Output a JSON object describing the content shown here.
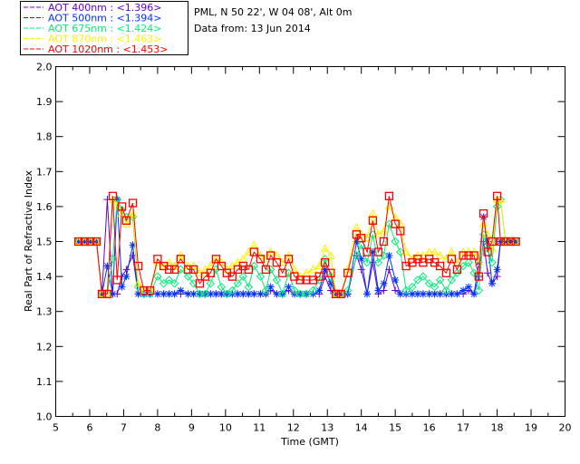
{
  "header": {
    "site": "PML, N 50 22', W 04 08', Alt 0m",
    "date": "Data from: 13 Jun 2014"
  },
  "chart_data": {
    "type": "line",
    "title": "",
    "xlabel": "Time (GMT)",
    "ylabel": "Real Part of Refractive Index",
    "xlim": [
      5,
      20
    ],
    "ylim": [
      1.0,
      2.0
    ],
    "xticks": [
      "5",
      "6",
      "7",
      "8",
      "9",
      "10",
      "11",
      "12",
      "13",
      "14",
      "15",
      "16",
      "17",
      "18",
      "19",
      "20"
    ],
    "yticks": [
      "1.0",
      "1.1",
      "1.2",
      "1.3",
      "1.4",
      "1.5",
      "1.6",
      "1.7",
      "1.8",
      "1.9",
      "2.0"
    ],
    "legend_position": "top-left",
    "x": [
      5.67,
      5.85,
      6.02,
      6.2,
      6.36,
      6.52,
      6.68,
      6.81,
      6.95,
      7.08,
      7.27,
      7.43,
      7.6,
      7.78,
      8.0,
      8.18,
      8.34,
      8.5,
      8.68,
      8.9,
      9.06,
      9.24,
      9.4,
      9.56,
      9.72,
      9.88,
      10.04,
      10.2,
      10.36,
      10.52,
      10.68,
      10.84,
      11.03,
      11.19,
      11.33,
      11.51,
      11.68,
      11.86,
      12.03,
      12.2,
      12.38,
      12.58,
      12.76,
      12.93,
      13.1,
      13.25,
      13.4,
      13.6,
      13.86,
      14.0,
      14.17,
      14.34,
      14.5,
      14.66,
      14.82,
      15.0,
      15.15,
      15.32,
      15.5,
      15.66,
      15.82,
      16.0,
      16.16,
      16.32,
      16.5,
      16.66,
      16.82,
      17.0,
      17.16,
      17.32,
      17.46,
      17.6,
      17.72,
      17.85,
      18.0,
      18.1,
      18.25,
      18.4,
      18.55
    ],
    "series": [
      {
        "name": "AOT  400nm",
        "mean": "<1.396>",
        "color": "#6600cc",
        "marker": "plus",
        "values": [
          1.5,
          1.5,
          1.5,
          1.5,
          1.35,
          1.62,
          1.35,
          1.35,
          1.4,
          1.42,
          1.46,
          1.35,
          1.35,
          1.35,
          1.35,
          1.35,
          1.35,
          1.35,
          1.35,
          1.35,
          1.35,
          1.35,
          1.35,
          1.35,
          1.35,
          1.35,
          1.35,
          1.35,
          1.35,
          1.35,
          1.35,
          1.35,
          1.35,
          1.35,
          1.36,
          1.35,
          1.35,
          1.36,
          1.35,
          1.35,
          1.35,
          1.35,
          1.35,
          1.4,
          1.36,
          1.35,
          1.35,
          1.35,
          1.46,
          1.42,
          1.35,
          1.44,
          1.35,
          1.36,
          1.42,
          1.36,
          1.35,
          1.35,
          1.35,
          1.35,
          1.35,
          1.35,
          1.35,
          1.35,
          1.35,
          1.35,
          1.35,
          1.35,
          1.36,
          1.35,
          1.4,
          1.5,
          1.41,
          1.38,
          1.4,
          1.5,
          1.5,
          1.5,
          1.5
        ]
      },
      {
        "name": "AOT  500nm",
        "mean": "<1.394>",
        "color": "#0033ff",
        "marker": "asterisk",
        "values": [
          1.5,
          1.5,
          1.5,
          1.5,
          1.35,
          1.43,
          1.35,
          1.62,
          1.37,
          1.4,
          1.49,
          1.35,
          1.35,
          1.35,
          1.35,
          1.35,
          1.35,
          1.35,
          1.36,
          1.35,
          1.35,
          1.35,
          1.35,
          1.35,
          1.35,
          1.35,
          1.35,
          1.35,
          1.35,
          1.35,
          1.35,
          1.35,
          1.35,
          1.35,
          1.37,
          1.35,
          1.35,
          1.37,
          1.35,
          1.35,
          1.35,
          1.35,
          1.36,
          1.42,
          1.38,
          1.35,
          1.35,
          1.35,
          1.5,
          1.45,
          1.35,
          1.47,
          1.36,
          1.38,
          1.46,
          1.39,
          1.35,
          1.35,
          1.35,
          1.35,
          1.35,
          1.35,
          1.35,
          1.35,
          1.35,
          1.35,
          1.35,
          1.36,
          1.37,
          1.35,
          1.44,
          1.57,
          1.5,
          1.38,
          1.42,
          1.5,
          1.5,
          1.5,
          1.5
        ]
      },
      {
        "name": "AOT  675nm",
        "mean": "<1.424>",
        "color": "#00ee77",
        "marker": "diamond",
        "values": [
          1.5,
          1.5,
          1.5,
          1.5,
          1.35,
          1.35,
          1.45,
          1.62,
          1.59,
          1.57,
          1.57,
          1.37,
          1.35,
          1.35,
          1.4,
          1.38,
          1.39,
          1.38,
          1.42,
          1.4,
          1.38,
          1.35,
          1.35,
          1.38,
          1.42,
          1.37,
          1.35,
          1.36,
          1.38,
          1.4,
          1.37,
          1.43,
          1.4,
          1.36,
          1.42,
          1.39,
          1.35,
          1.41,
          1.36,
          1.35,
          1.35,
          1.36,
          1.39,
          1.45,
          1.4,
          1.35,
          1.35,
          1.36,
          1.46,
          1.49,
          1.44,
          1.52,
          1.44,
          1.46,
          1.55,
          1.5,
          1.47,
          1.36,
          1.37,
          1.39,
          1.4,
          1.38,
          1.37,
          1.39,
          1.36,
          1.39,
          1.41,
          1.43,
          1.44,
          1.41,
          1.36,
          1.52,
          1.48,
          1.44,
          1.6,
          1.62,
          1.5,
          1.5,
          1.5
        ]
      },
      {
        "name": "AOT  870nm",
        "mean": "<1.463>",
        "color": "#ffee00",
        "marker": "triangle",
        "values": [
          1.5,
          1.5,
          1.5,
          1.5,
          1.35,
          1.35,
          1.62,
          1.6,
          1.58,
          1.55,
          1.58,
          1.38,
          1.36,
          1.36,
          1.44,
          1.43,
          1.44,
          1.43,
          1.46,
          1.43,
          1.43,
          1.41,
          1.42,
          1.43,
          1.45,
          1.44,
          1.42,
          1.43,
          1.44,
          1.45,
          1.47,
          1.49,
          1.46,
          1.45,
          1.47,
          1.46,
          1.44,
          1.46,
          1.42,
          1.4,
          1.41,
          1.42,
          1.43,
          1.48,
          1.46,
          1.35,
          1.35,
          1.42,
          1.54,
          1.52,
          1.51,
          1.58,
          1.52,
          1.53,
          1.6,
          1.57,
          1.55,
          1.47,
          1.45,
          1.46,
          1.46,
          1.47,
          1.47,
          1.46,
          1.45,
          1.47,
          1.44,
          1.47,
          1.47,
          1.47,
          1.44,
          1.55,
          1.52,
          1.48,
          1.62,
          1.62,
          1.5,
          1.5,
          1.5
        ]
      },
      {
        "name": "AOT 1020nm",
        "mean": "<1.453>",
        "color": "#ff0000",
        "marker": "square",
        "values": [
          1.5,
          1.5,
          1.5,
          1.5,
          1.35,
          1.35,
          1.63,
          1.39,
          1.6,
          1.56,
          1.61,
          1.43,
          1.36,
          1.36,
          1.45,
          1.43,
          1.42,
          1.42,
          1.45,
          1.42,
          1.42,
          1.38,
          1.4,
          1.41,
          1.45,
          1.43,
          1.41,
          1.4,
          1.42,
          1.43,
          1.42,
          1.47,
          1.45,
          1.42,
          1.46,
          1.44,
          1.41,
          1.45,
          1.4,
          1.39,
          1.39,
          1.39,
          1.4,
          1.44,
          1.41,
          1.35,
          1.35,
          1.41,
          1.52,
          1.51,
          1.47,
          1.56,
          1.47,
          1.5,
          1.63,
          1.55,
          1.53,
          1.43,
          1.44,
          1.45,
          1.44,
          1.45,
          1.44,
          1.43,
          1.41,
          1.45,
          1.42,
          1.46,
          1.46,
          1.46,
          1.4,
          1.58,
          1.47,
          1.5,
          1.63,
          1.5,
          1.5,
          1.5,
          1.5
        ]
      }
    ]
  }
}
